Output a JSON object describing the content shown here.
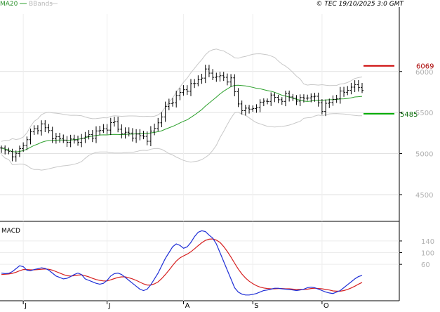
{
  "header": {
    "legend_ma": "MA20",
    "legend_bbands": "BBands",
    "copyright": "© TEC 19/10/2025 3:0 GMT"
  },
  "colors": {
    "ma": "#2ca02c",
    "bbands": "#c8c8c8",
    "price": "#000000",
    "resistance": "#cc0000",
    "support": "#00aa00",
    "macd": "#1f2fd6",
    "signal": "#d62020",
    "grid": "#e2e2e2"
  },
  "chart_data": [
    {
      "type": "ohlc",
      "y_ticks": [
        4500,
        5000,
        5500,
        6000
      ],
      "y_tick_labels": [
        "4500",
        "5000",
        "5500",
        "6000"
      ],
      "ylim": [
        4200,
        6700
      ],
      "x_labels": [
        "J",
        "J",
        "A",
        "S",
        "O"
      ],
      "x_label_index": [
        6,
        29,
        50,
        69,
        88
      ],
      "num_periods": 100,
      "levels": [
        {
          "label": "6069",
          "value": 6069,
          "color": "#cc0000"
        },
        {
          "label": "5485",
          "value": 5485,
          "color": "#00aa00"
        }
      ],
      "series": [
        {
          "name": "MA20",
          "type": "line"
        },
        {
          "name": "BBands",
          "type": "band"
        }
      ]
    },
    {
      "type": "line",
      "title": "MACD",
      "y_ticks": [
        60,
        100,
        140
      ],
      "y_tick_labels": [
        "60",
        "100",
        "140"
      ],
      "ylim": [
        -60,
        200
      ],
      "macd_values": [
        30,
        28,
        29,
        35,
        45,
        55,
        52,
        40,
        38,
        42,
        45,
        48,
        46,
        40,
        30,
        20,
        15,
        10,
        12,
        18,
        25,
        30,
        25,
        10,
        5,
        0,
        -5,
        -8,
        -5,
        5,
        20,
        28,
        30,
        25,
        15,
        5,
        -5,
        -15,
        -25,
        -30,
        -25,
        -10,
        10,
        30,
        55,
        80,
        100,
        120,
        130,
        125,
        115,
        120,
        135,
        155,
        170,
        175,
        172,
        160,
        150,
        130,
        100,
        70,
        40,
        10,
        -20,
        -35,
        -42,
        -45,
        -45,
        -43,
        -40,
        -35,
        -30,
        -28,
        -25,
        -22,
        -22,
        -24,
        -25,
        -26,
        -28,
        -30,
        -28,
        -25,
        -20,
        -18,
        -20,
        -25,
        -30,
        -35,
        -38,
        -40,
        -35,
        -30,
        -20,
        -10,
        0,
        10,
        18,
        22
      ],
      "signal_values": [
        25,
        26,
        27,
        29,
        33,
        38,
        42,
        42,
        41,
        41,
        42,
        43,
        44,
        43,
        40,
        35,
        30,
        25,
        21,
        20,
        21,
        23,
        24,
        21,
        17,
        12,
        8,
        5,
        3,
        3,
        7,
        11,
        15,
        17,
        17,
        14,
        10,
        5,
        -1,
        -7,
        -11,
        -11,
        -7,
        0,
        11,
        25,
        40,
        56,
        71,
        82,
        89,
        95,
        103,
        113,
        124,
        134,
        142,
        146,
        147,
        143,
        135,
        121,
        104,
        85,
        64,
        44,
        27,
        13,
        2,
        -6,
        -13,
        -18,
        -21,
        -23,
        -24,
        -24,
        -23,
        -23,
        -24,
        -24,
        -25,
        -26,
        -26,
        -26,
        -25,
        -23,
        -22,
        -23,
        -24,
        -26,
        -28,
        -31,
        -32,
        -32,
        -30,
        -26,
        -21,
        -15,
        -8,
        -2
      ]
    }
  ]
}
